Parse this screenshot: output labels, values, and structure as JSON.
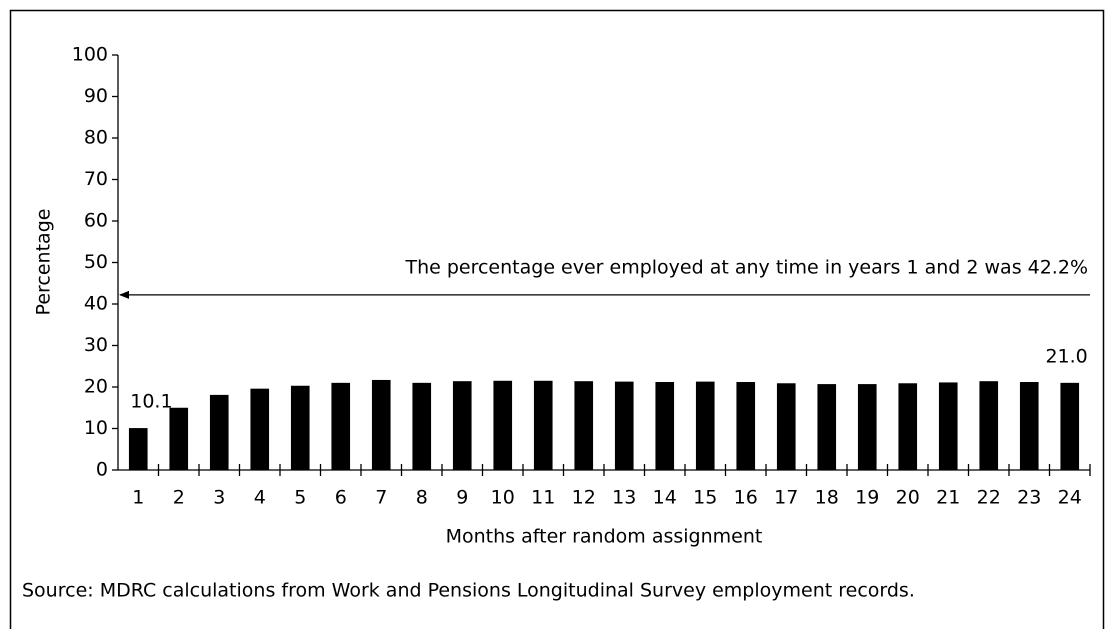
{
  "chart_data": {
    "type": "bar",
    "x_label": "Months after random assignment",
    "y_label": "Percentage",
    "source": "Source: MDRC calculations from Work and Pensions Longitudinal Survey employment records.",
    "categories": [
      "1",
      "2",
      "3",
      "4",
      "5",
      "6",
      "7",
      "8",
      "9",
      "10",
      "11",
      "12",
      "13",
      "14",
      "15",
      "16",
      "17",
      "18",
      "19",
      "20",
      "21",
      "22",
      "23",
      "24"
    ],
    "values": [
      10.1,
      15.0,
      18.1,
      19.6,
      20.3,
      21.0,
      21.7,
      21.0,
      21.4,
      21.5,
      21.5,
      21.4,
      21.3,
      21.2,
      21.3,
      21.2,
      20.9,
      20.7,
      20.7,
      20.9,
      21.1,
      21.4,
      21.2,
      21.0
    ],
    "value_labels": [
      "10.1",
      null,
      null,
      null,
      null,
      null,
      null,
      null,
      null,
      null,
      null,
      null,
      null,
      null,
      null,
      null,
      null,
      null,
      null,
      null,
      null,
      null,
      null,
      "21.0"
    ],
    "color": "#000000",
    "ylim": [
      0,
      100
    ],
    "yticks": [
      0,
      10,
      20,
      30,
      40,
      50,
      60,
      70,
      80,
      90,
      100
    ],
    "grid": false,
    "annotation": {
      "text": "The percentage ever employed at any time in years 1 and 2 was 42.2%",
      "value": 42.2
    }
  }
}
